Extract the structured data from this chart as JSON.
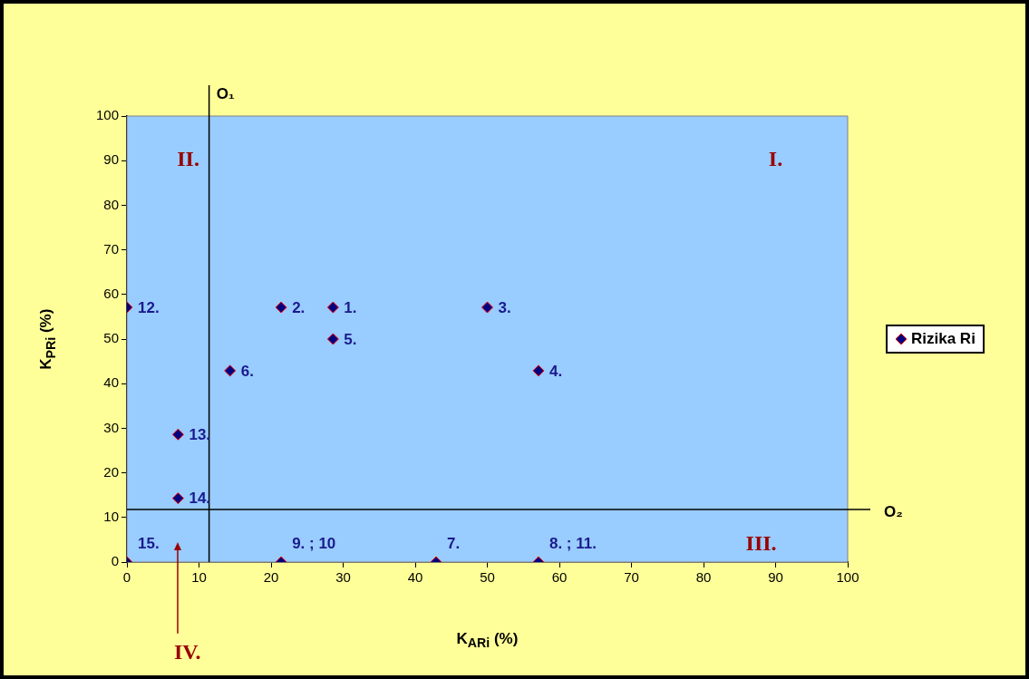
{
  "chart_data": {
    "type": "scatter",
    "xlabel": "K$_{ARi}$ (%)",
    "ylabel": "K$_{PRi}$ (%)",
    "x": [
      28.6,
      21.4,
      50,
      57.1,
      28.6,
      14.3,
      42.9,
      57.1,
      21.4,
      0,
      7.1,
      7.1,
      0
    ],
    "series": [
      {
        "name": "Rizika Ri",
        "color": "#000080",
        "values": [
          57.1,
          57.1,
          57.1,
          42.9,
          50,
          42.9,
          0,
          0,
          0,
          57.1,
          28.6,
          14.3,
          0
        ]
      }
    ],
    "xlim": [
      0,
      100
    ],
    "ylim": [
      0,
      100
    ],
    "xticks": [
      0,
      10,
      20,
      30,
      40,
      50,
      60,
      70,
      80,
      90,
      100
    ],
    "yticks": [
      0,
      10,
      20,
      30,
      40,
      50,
      60,
      70,
      80,
      90,
      100
    ],
    "marker": "diamond",
    "legend": "right",
    "ref_lines": [
      {
        "axis": "x",
        "value": 11.4,
        "label": "O₁",
        "color": "#000000"
      },
      {
        "axis": "y",
        "value": 11.8,
        "label": "O₂",
        "color": "#000000"
      }
    ],
    "annotations": [
      {
        "text": "1.",
        "x": 28.6,
        "y": 57.1
      },
      {
        "text": "2.",
        "x": 21.4,
        "y": 57.1
      },
      {
        "text": "3.",
        "x": 50,
        "y": 57.1
      },
      {
        "text": "4.",
        "x": 57.1,
        "y": 42.9
      },
      {
        "text": "5.",
        "x": 28.6,
        "y": 50
      },
      {
        "text": "6.",
        "x": 14.3,
        "y": 42.9
      },
      {
        "text": "7.",
        "x": 42.9,
        "y": 0
      },
      {
        "text": "8. ; 11.",
        "x": 57.1,
        "y": 0
      },
      {
        "text": "9. ; 10",
        "x": 21.4,
        "y": 0
      },
      {
        "text": "12.",
        "x": 0,
        "y": 57.1
      },
      {
        "text": "13.",
        "x": 7.1,
        "y": 28.6
      },
      {
        "text": "14.",
        "x": 7.1,
        "y": 14.3
      },
      {
        "text": "15.",
        "x": 0,
        "y": 0
      },
      "I.",
      "II.",
      "III.",
      "IV."
    ]
  }
}
